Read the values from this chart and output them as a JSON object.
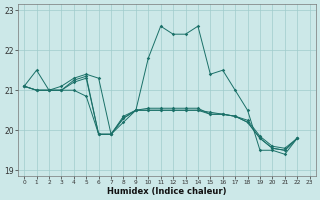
{
  "xlabel": "Humidex (Indice chaleur)",
  "bg_color": "#cce8e8",
  "grid_color": "#a0cccc",
  "line_color": "#1a7068",
  "xlim": [
    -0.5,
    23.5
  ],
  "ylim": [
    18.85,
    23.15
  ],
  "yticks": [
    19,
    20,
    21,
    22,
    23
  ],
  "xticks": [
    0,
    1,
    2,
    3,
    4,
    5,
    6,
    7,
    8,
    9,
    10,
    11,
    12,
    13,
    14,
    15,
    16,
    17,
    18,
    19,
    20,
    21,
    22,
    23
  ],
  "s1x": [
    0,
    1,
    2,
    3,
    4,
    5,
    6,
    7,
    8,
    9,
    10,
    11,
    12,
    13,
    14,
    15,
    16,
    17,
    18,
    19,
    20,
    21,
    22
  ],
  "s1y": [
    21.1,
    21.5,
    21.0,
    21.1,
    21.3,
    21.4,
    21.3,
    19.9,
    20.2,
    20.5,
    21.8,
    22.6,
    22.4,
    22.4,
    22.6,
    21.4,
    21.5,
    21.0,
    20.5,
    19.5,
    19.5,
    19.4,
    19.8
  ],
  "s2x": [
    0,
    1,
    2,
    3,
    4,
    5,
    6,
    7,
    8,
    9,
    10,
    11,
    12,
    13,
    14,
    15,
    16,
    17,
    18,
    19,
    20,
    21,
    22
  ],
  "s2y": [
    21.1,
    21.0,
    21.0,
    21.0,
    21.0,
    20.85,
    19.9,
    19.9,
    20.35,
    20.5,
    20.5,
    20.5,
    20.5,
    20.5,
    20.5,
    20.45,
    20.4,
    20.35,
    20.25,
    19.85,
    19.6,
    19.55,
    19.8
  ],
  "s3x": [
    0,
    1,
    2,
    3,
    4,
    5,
    6,
    7,
    8,
    9,
    10,
    11,
    12,
    13,
    14,
    15,
    16,
    17,
    18,
    19,
    20,
    21,
    22
  ],
  "s3y": [
    21.1,
    21.0,
    21.0,
    21.0,
    21.25,
    21.35,
    19.9,
    19.9,
    20.3,
    20.5,
    20.5,
    20.5,
    20.5,
    20.5,
    20.5,
    20.4,
    20.4,
    20.35,
    20.2,
    19.8,
    19.55,
    19.5,
    19.8
  ],
  "s4x": [
    0,
    1,
    2,
    3,
    4,
    5,
    6,
    7,
    8,
    9,
    10,
    11,
    12,
    13,
    14,
    15,
    16,
    17,
    18,
    19,
    20,
    21,
    22
  ],
  "s4y": [
    21.1,
    21.0,
    21.0,
    21.0,
    21.2,
    21.3,
    19.9,
    19.9,
    20.3,
    20.5,
    20.55,
    20.55,
    20.55,
    20.55,
    20.55,
    20.4,
    20.4,
    20.35,
    20.2,
    19.8,
    19.55,
    19.5,
    19.8
  ]
}
